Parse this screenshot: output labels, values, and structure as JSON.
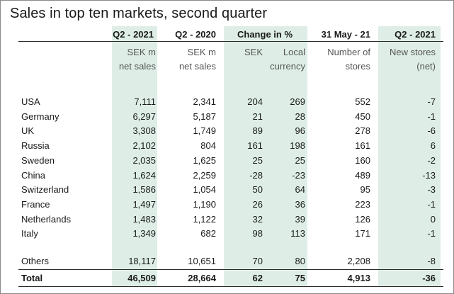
{
  "title": "Sales in top ten markets, second quarter",
  "headers": {
    "col1": "Q2 - 2021",
    "col2": "Q2 - 2020",
    "change": "Change in %",
    "col5": "31 May - 21",
    "col6": "Q2 - 2021"
  },
  "subheaders": {
    "col1_a": "SEK m",
    "col1_b": "net sales",
    "col2_a": "SEK m",
    "col2_b": "net sales",
    "col3_a": "SEK",
    "col4_a": "Local",
    "col4_b": "currency",
    "col5_a": "Number of",
    "col5_b": "stores",
    "col6_a": "New stores",
    "col6_b": "(net)"
  },
  "rows": [
    {
      "country": "USA",
      "q2_2021": "7,111",
      "q2_2020": "2,341",
      "sek": "204",
      "local": "269",
      "stores": "552",
      "new": "-7"
    },
    {
      "country": "Germany",
      "q2_2021": "6,297",
      "q2_2020": "5,187",
      "sek": "21",
      "local": "28",
      "stores": "450",
      "new": "-1"
    },
    {
      "country": "UK",
      "q2_2021": "3,308",
      "q2_2020": "1,749",
      "sek": "89",
      "local": "96",
      "stores": "278",
      "new": "-6"
    },
    {
      "country": "Russia",
      "q2_2021": "2,102",
      "q2_2020": "804",
      "sek": "161",
      "local": "198",
      "stores": "161",
      "new": "6"
    },
    {
      "country": "Sweden",
      "q2_2021": "2,035",
      "q2_2020": "1,625",
      "sek": "25",
      "local": "25",
      "stores": "160",
      "new": "-2"
    },
    {
      "country": "China",
      "q2_2021": "1,624",
      "q2_2020": "2,259",
      "sek": "-28",
      "local": "-23",
      "stores": "489",
      "new": "-13"
    },
    {
      "country": "Switzerland",
      "q2_2021": "1,586",
      "q2_2020": "1,054",
      "sek": "50",
      "local": "64",
      "stores": "95",
      "new": "-3"
    },
    {
      "country": "France",
      "q2_2021": "1,497",
      "q2_2020": "1,190",
      "sek": "26",
      "local": "36",
      "stores": "223",
      "new": "-1"
    },
    {
      "country": "Netherlands",
      "q2_2021": "1,483",
      "q2_2020": "1,122",
      "sek": "32",
      "local": "39",
      "stores": "126",
      "new": "0"
    },
    {
      "country": "Italy",
      "q2_2021": "1,349",
      "q2_2020": "682",
      "sek": "98",
      "local": "113",
      "stores": "171",
      "new": "-1"
    }
  ],
  "others": {
    "country": "Others",
    "q2_2021": "18,117",
    "q2_2020": "10,651",
    "sek": "70",
    "local": "80",
    "stores": "2,208",
    "new": "-8"
  },
  "total": {
    "country": "Total",
    "q2_2021": "46,509",
    "q2_2020": "28,664",
    "sek": "62",
    "local": "75",
    "stores": "4,913",
    "new": "-36"
  },
  "colors": {
    "band": "#deeee7",
    "text": "#1a1a1a",
    "rule": "#2a2a2a"
  }
}
